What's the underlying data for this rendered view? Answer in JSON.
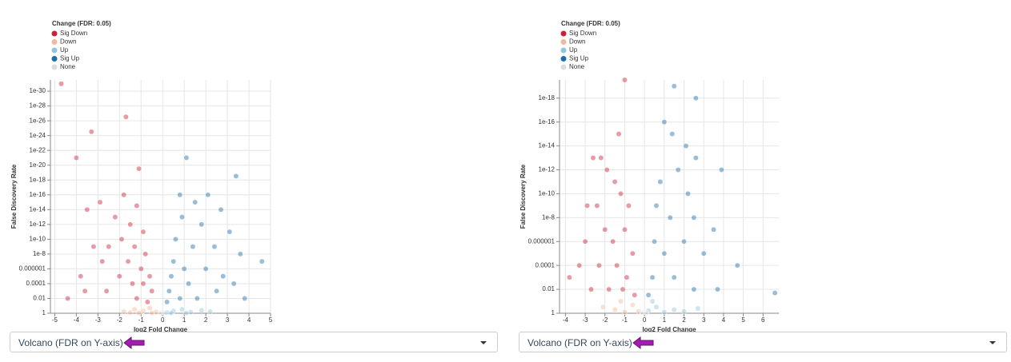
{
  "chart_data": [
    {
      "type": "scatter",
      "legend_title": "Change (FDR: 0.05)",
      "x_label": "log2 Fold Change",
      "y_label": "False Discovery Rate",
      "xlim": [
        -5.2,
        5
      ],
      "xticks": [
        -5,
        -4,
        -3,
        -2,
        -1,
        0,
        1,
        2,
        3,
        4,
        5
      ],
      "ylim": [
        1,
        3e-32
      ],
      "yticks": [
        1,
        0.01,
        0.0001,
        1e-06,
        1e-08,
        1e-10,
        1e-12,
        1e-14,
        1e-16,
        1e-18,
        1e-20,
        1e-22,
        1e-24,
        1e-26,
        1e-28,
        1e-30
      ],
      "log_y": true,
      "grid": true,
      "legend": "top-left",
      "series": [
        {
          "name": "Sig Down",
          "color": "#c9213a",
          "x": [
            -4.7,
            -1.7,
            -3.3,
            -4,
            -1.1,
            -3.5,
            -2.9,
            -1.8,
            -1.2,
            -2.2,
            -1.5,
            -0.9,
            -3.2,
            -2.5,
            -1.9,
            -1.3,
            -0.8,
            -2.8,
            -1.6,
            -1,
            -0.6,
            -3.8,
            -2,
            -1.4,
            -0.9,
            -0.5,
            -2.6,
            -1.2,
            -0.7,
            -3.6,
            -4.4
          ],
          "values": [
            1e-31,
            3e-27,
            3e-25,
            1e-21,
            3e-20,
            1e-14,
            1e-15,
            1e-16,
            3e-15,
            1e-13,
            1e-12,
            1e-11,
            1e-09,
            1e-09,
            1e-10,
            1e-09,
            1e-08,
            1e-07,
            1e-07,
            1e-06,
            1e-05,
            1e-05,
            1e-05,
            0.0001,
            0.0001,
            0.001,
            0.001,
            0.01,
            0.03,
            0.001,
            0.01
          ]
        },
        {
          "name": "Down",
          "color": "#f4b89a",
          "x": [
            -1.8,
            -1.3,
            -0.9,
            -0.6,
            -0.3,
            -1.1,
            -0.5,
            -1.5
          ],
          "values": [
            0.6,
            0.3,
            0.5,
            0.2,
            0.7,
            0.9,
            0.9,
            0.8
          ]
        },
        {
          "name": "Up",
          "color": "#92c5de",
          "x": [
            0.2,
            0.5,
            0.9,
            1.3,
            1.8,
            0.4,
            1.1,
            2.2
          ],
          "values": [
            0.8,
            0.5,
            0.3,
            0.7,
            0.4,
            0.9,
            0.9,
            0.6
          ]
        },
        {
          "name": "Sig Up",
          "color": "#1f6ea8",
          "x": [
            1.1,
            3.4,
            0.8,
            1.5,
            2.1,
            2.7,
            0.9,
            1.8,
            3.1,
            0.6,
            1.4,
            2.4,
            3.6,
            0.5,
            1,
            2,
            4.6,
            0.4,
            1.2,
            2.8,
            3.3,
            0.3,
            0.8,
            1.6,
            2.5,
            3.8,
            0.2
          ],
          "values": [
            1e-21,
            3e-19,
            1e-16,
            1e-15,
            1e-16,
            1e-14,
            1e-13,
            1e-12,
            1e-11,
            1e-10,
            1e-09,
            1e-09,
            1e-08,
            1e-07,
            1e-06,
            1e-06,
            1e-07,
            1e-05,
            0.0001,
            1e-05,
            0.0001,
            0.001,
            0.01,
            0.01,
            0.001,
            0.01,
            0.03
          ]
        },
        {
          "name": "None",
          "color": "#dddddd",
          "x": [
            -0.1,
            0.1
          ],
          "values": [
            0.9,
            0.95
          ]
        }
      ]
    },
    {
      "type": "scatter",
      "legend_title": "Change (FDR: 0.05)",
      "x_label": "log2 Fold Change",
      "y_label": "False Discovery Rate",
      "xlim": [
        -4.3,
        6.8
      ],
      "xticks": [
        -4,
        -3,
        -2,
        -1,
        0,
        1,
        2,
        3,
        4,
        5,
        6
      ],
      "ylim": [
        1,
        3e-20
      ],
      "yticks": [
        1,
        0.01,
        0.0001,
        1e-06,
        1e-08,
        1e-10,
        1e-12,
        1e-14,
        1e-16,
        1e-18
      ],
      "log_y": true,
      "grid": true,
      "legend": "top-left",
      "series": [
        {
          "name": "Sig Down",
          "color": "#c9213a",
          "x": [
            -1,
            -1.3,
            -2.6,
            -2.2,
            -1.9,
            -1.5,
            -2.9,
            -2.4,
            -1.2,
            -0.8,
            -3,
            -2,
            -1.6,
            -1,
            -0.6,
            -3.3,
            -2.3,
            -1.4,
            -0.9,
            -3.8,
            -2.7,
            -1.8,
            -1.1,
            -0.5
          ],
          "values": [
            3e-20,
            1e-15,
            1e-13,
            1e-13,
            1e-12,
            1e-11,
            1e-09,
            1e-09,
            1e-10,
            1e-09,
            1e-06,
            1e-07,
            1e-06,
            1e-07,
            1e-05,
            0.0001,
            0.0001,
            0.0001,
            0.001,
            0.001,
            0.01,
            0.01,
            0.01,
            0.03
          ]
        },
        {
          "name": "Down",
          "color": "#f4b89a",
          "x": [
            -2.1,
            -1.5,
            -1,
            -0.6,
            -0.3,
            -1.2
          ],
          "values": [
            0.3,
            0.5,
            0.8,
            0.2,
            0.7,
            0.1
          ]
        },
        {
          "name": "Up",
          "color": "#92c5de",
          "x": [
            0.2,
            0.6,
            1,
            1.5,
            2,
            2.7,
            0.4
          ],
          "values": [
            0.6,
            0.3,
            0.8,
            0.5,
            0.7,
            0.4,
            0.1
          ]
        },
        {
          "name": "Sig Up",
          "color": "#1f6ea8",
          "x": [
            1.5,
            2.6,
            1,
            1.4,
            2.1,
            2.6,
            3.9,
            0.8,
            1.7,
            2.2,
            0.6,
            1.3,
            2.5,
            3.5,
            0.5,
            1,
            2,
            3,
            4.7,
            0.4,
            1.5,
            2.5,
            3.7,
            6.6,
            0.2
          ],
          "values": [
            1e-19,
            1e-18,
            1e-16,
            1e-15,
            1e-14,
            1e-13,
            1e-12,
            1e-11,
            1e-12,
            1e-10,
            1e-09,
            1e-08,
            1e-08,
            1e-07,
            1e-06,
            1e-05,
            1e-06,
            1e-05,
            0.0001,
            0.001,
            0.001,
            0.01,
            0.01,
            0.02,
            0.03
          ]
        },
        {
          "name": "None",
          "color": "#dddddd",
          "x": [
            -0.1,
            0.1
          ],
          "values": [
            0.9,
            0.95
          ]
        }
      ]
    }
  ],
  "controls": [
    {
      "label": "Volcano (FDR on Y-axis)"
    },
    {
      "label": "Volcano (FDR on Y-axis)"
    }
  ]
}
